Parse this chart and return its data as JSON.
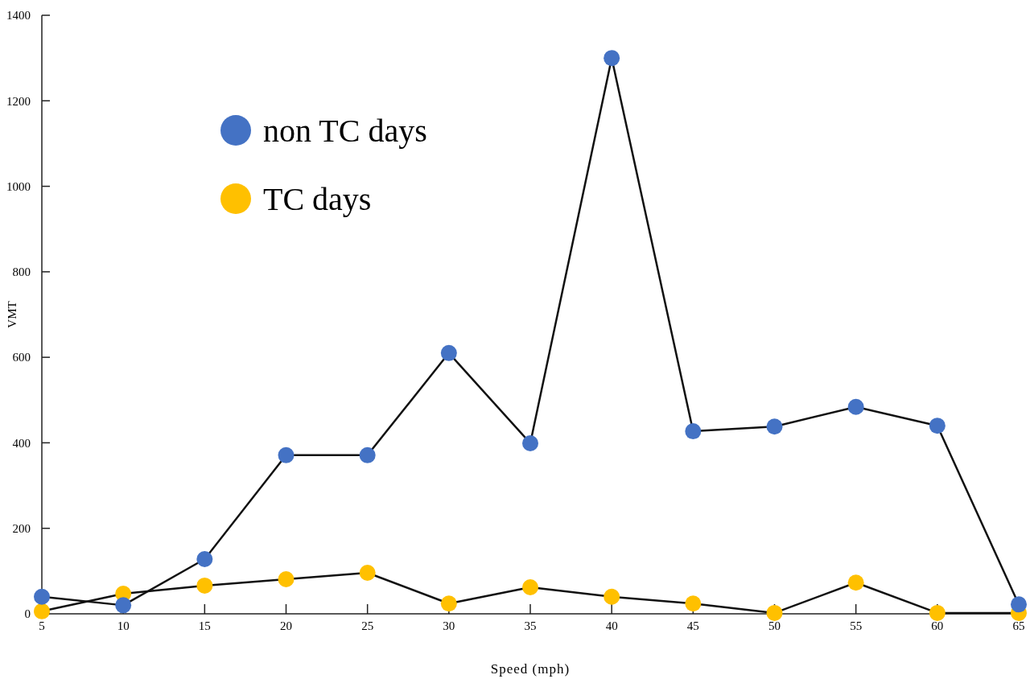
{
  "chart_data": {
    "type": "line",
    "xlabel": "Speed (mph)",
    "ylabel": "VMT",
    "x": [
      5,
      10,
      15,
      20,
      25,
      30,
      35,
      40,
      45,
      50,
      55,
      60,
      65
    ],
    "series": [
      {
        "name": "non TC days",
        "color": "#4472c4",
        "values": [
          40,
          20,
          128,
          371,
          371,
          610,
          399,
          1300,
          427,
          438,
          484,
          440,
          22
        ]
      },
      {
        "name": "TC days",
        "color": "#ffc000",
        "values": [
          6,
          47,
          66,
          81,
          96,
          24,
          62,
          40,
          24,
          2,
          73,
          2,
          2
        ]
      }
    ],
    "xlim": [
      5,
      65
    ],
    "xticks": [
      5,
      10,
      15,
      20,
      25,
      30,
      35,
      40,
      45,
      50,
      55,
      60,
      65
    ],
    "ylim": [
      0,
      1400
    ],
    "yticks": [
      0,
      200,
      400,
      600,
      800,
      1000,
      1200,
      1400
    ],
    "grid": false,
    "legend": "top left",
    "marker": "circle",
    "line_style": "solid"
  }
}
